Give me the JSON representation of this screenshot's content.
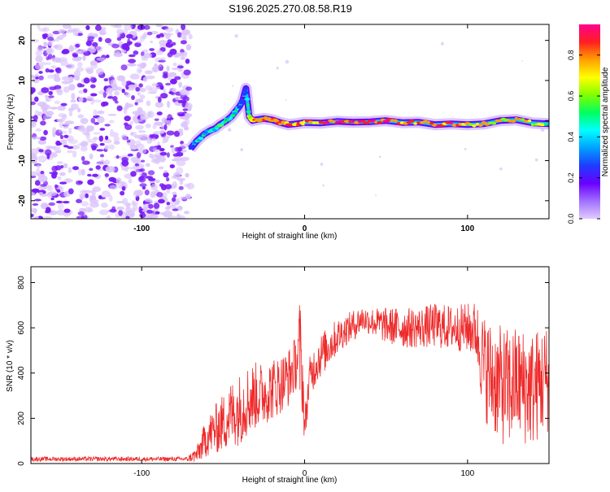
{
  "figure": {
    "title": "S196.2025.270.08.58.R19"
  },
  "colors": {
    "axis": "#000000",
    "snr_line": "#ee2a2a",
    "noise_purple": "#7a1cf5",
    "noise_light": "#d9c2fb",
    "colormap": [
      "#e0ccff",
      "#a070ff",
      "#6a00ff",
      "#1e3cff",
      "#00a0ff",
      "#00ffff",
      "#00ff60",
      "#80ff00",
      "#ffff00",
      "#ffa000",
      "#ff2020",
      "#ff0090"
    ]
  },
  "chart_data": [
    {
      "type": "heatmap",
      "title": "S196.2025.270.08.58.R19",
      "xlabel": "Height of straight line (km)",
      "ylabel": "Frequency (Hz)",
      "xlim": [
        -168,
        150
      ],
      "ylim": [
        -24.5,
        24
      ],
      "xticks": [
        -100,
        0,
        100
      ],
      "yticks": [
        -20,
        -10,
        0,
        10,
        20
      ],
      "colorbar": {
        "label": "Normalized spectral amplitude",
        "range": [
          0.0,
          0.95
        ],
        "ticks": [
          "0.0",
          "0.2",
          "0.4",
          "0.6",
          "0.8"
        ]
      },
      "noise_region": {
        "x": [
          -168,
          -70
        ],
        "y": [
          -24.5,
          24
        ]
      },
      "ridge": {
        "x": [
          -70,
          -66,
          -62,
          -58,
          -55,
          -52,
          -48,
          -45,
          -42,
          -40,
          -38,
          -36,
          -34,
          -32,
          -30,
          -25,
          -20,
          -15,
          -10,
          -5,
          0,
          10,
          20,
          30,
          40,
          50,
          60,
          70,
          80,
          90,
          100,
          110,
          120,
          130,
          140,
          150
        ],
        "y": [
          -7,
          -5,
          -3.5,
          -2.5,
          -2,
          -1,
          0,
          1,
          2.5,
          3.5,
          5,
          8,
          1,
          0,
          0.2,
          0.5,
          0.2,
          -0.5,
          -1,
          -0.8,
          -0.5,
          -0.6,
          -0.2,
          -0.4,
          -0.3,
          0,
          -0.5,
          -0.4,
          -1,
          -0.8,
          -1,
          -0.8,
          0,
          0.2,
          -0.6,
          -0.8
        ],
        "amplitude": [
          0.3,
          0.4,
          0.45,
          0.4,
          0.45,
          0.5,
          0.45,
          0.4,
          0.4,
          0.35,
          0.3,
          0.2,
          0.7,
          0.75,
          0.85,
          0.9,
          0.85,
          0.8,
          0.85,
          0.75,
          0.8,
          0.85,
          0.9,
          0.85,
          0.9,
          0.85,
          0.8,
          0.85,
          0.9,
          0.85,
          0.8,
          0.75,
          0.7,
          0.75,
          0.7,
          0.6
        ]
      }
    },
    {
      "type": "line",
      "xlabel": "Height of straight line (km)",
      "ylabel": "SNR (10 * v/v)",
      "xlim": [
        -168,
        150
      ],
      "ylim": [
        0,
        870
      ],
      "xticks": [
        -100,
        0,
        100
      ],
      "yticks": [
        0,
        200,
        400,
        600,
        800
      ],
      "series": [
        {
          "x": [
            -168,
            -140,
            -110,
            -90,
            -72,
            -66,
            -60,
            -55,
            -50,
            -45,
            -40,
            -35,
            -30,
            -25,
            -20,
            -15,
            -10,
            -5,
            -3,
            -1,
            0,
            3,
            8,
            15,
            20,
            25,
            30,
            35,
            40,
            50,
            60,
            70,
            80,
            90,
            100,
            105,
            110,
            115,
            120,
            125,
            130,
            135,
            140,
            145,
            150
          ],
          "values": [
            20,
            20,
            20,
            20,
            20,
            40,
            120,
            150,
            180,
            220,
            240,
            280,
            300,
            310,
            330,
            350,
            380,
            450,
            500,
            350,
            150,
            380,
            460,
            520,
            560,
            590,
            610,
            640,
            630,
            610,
            600,
            600,
            610,
            600,
            600,
            590,
            430,
            380,
            350,
            330,
            360,
            340,
            330,
            360,
            380
          ],
          "spread": [
            10,
            10,
            10,
            10,
            10,
            40,
            90,
            110,
            130,
            150,
            160,
            160,
            150,
            140,
            140,
            130,
            130,
            120,
            250,
            150,
            80,
            90,
            100,
            90,
            80,
            70,
            70,
            60,
            60,
            80,
            90,
            90,
            100,
            100,
            110,
            130,
            230,
            250,
            260,
            270,
            250,
            260,
            260,
            250,
            240
          ]
        }
      ]
    }
  ]
}
